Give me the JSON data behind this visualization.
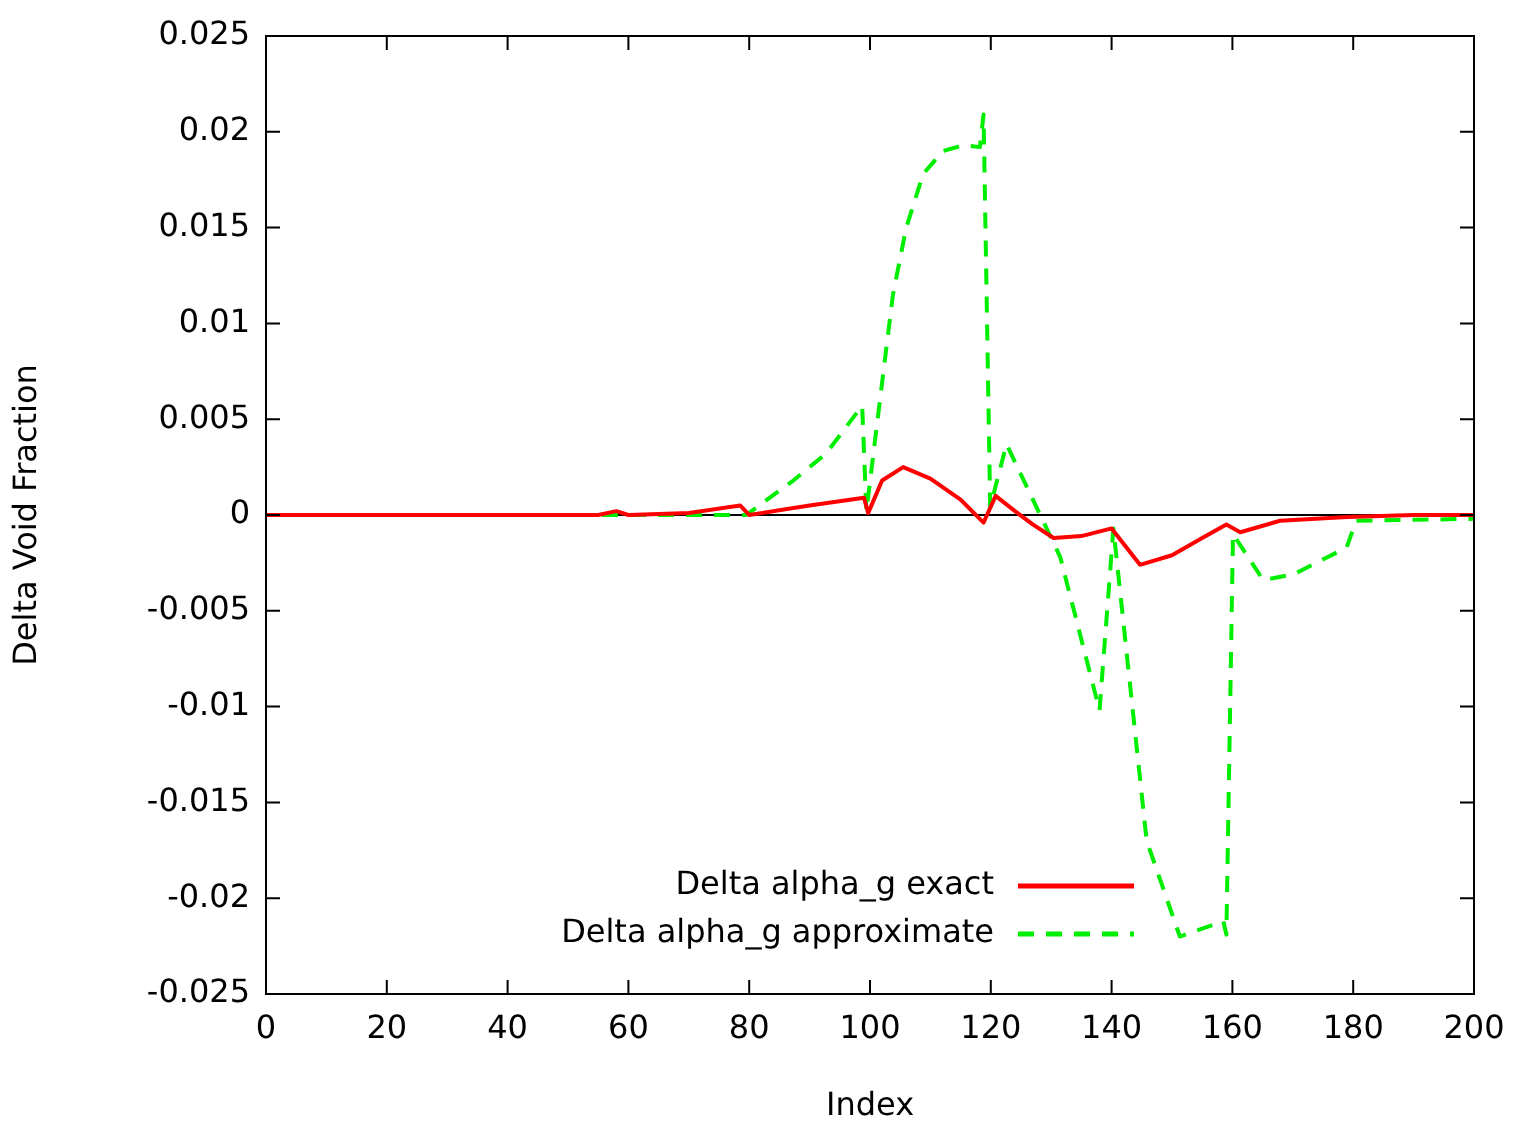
{
  "chart_data": {
    "type": "line",
    "xlabel": "Index",
    "ylabel": "Delta Void Fraction",
    "xlim": [
      0,
      200
    ],
    "xticks": [
      0,
      20,
      40,
      60,
      80,
      100,
      120,
      140,
      160,
      180,
      200
    ],
    "ylim": [
      -0.025,
      0.025
    ],
    "yticks": [
      -0.025,
      -0.02,
      -0.015,
      -0.01,
      -0.005,
      0,
      0.005,
      0.01,
      0.015,
      0.02,
      0.025
    ],
    "grid": false,
    "legend": "bottom",
    "marker": "none",
    "ref_lines": [
      {
        "axis": "y",
        "value": 0,
        "color": "#000000"
      }
    ],
    "series": [
      {
        "name": "Delta alpha_g exact",
        "color": "#ff0000",
        "line_style": "solid",
        "x": [
          0,
          55,
          58,
          60,
          70,
          78.5,
          80,
          90,
          99,
          99.7,
          102,
          105.5,
          110,
          115,
          118.8,
          120.8,
          124,
          127,
          130.4,
          135,
          140,
          144.7,
          150,
          155,
          159,
          161.3,
          167.9,
          179,
          190,
          200
        ],
        "values": [
          0,
          0,
          0.0002,
          0,
          0.0001,
          0.0005,
          0,
          0.0005,
          0.0009,
          0.0001,
          0.0018,
          0.0025,
          0.0019,
          0.0008,
          -0.0004,
          0.001,
          0.0002,
          -0.0005,
          -0.0012,
          -0.0011,
          -0.0007,
          -0.0026,
          -0.0021,
          -0.0012,
          -0.0005,
          -0.0009,
          -0.0003,
          -0.0001,
          0,
          0
        ]
      },
      {
        "name": "Delta alpha_g approximate",
        "color": "#00ee00",
        "line_style": "dashed",
        "x": [
          0,
          58,
          70,
          79.5,
          87.3,
          92.7,
          98.7,
          99.4,
          102.7,
          103.8,
          106,
          108.8,
          112.1,
          115.5,
          118.2,
          118.8,
          119.9,
          122.6,
          131.5,
          138,
          140.3,
          145.8,
          151.3,
          158.5,
          159,
          160.1,
          165.1,
          170.1,
          178.9,
          180.5,
          200
        ],
        "values": [
          0,
          0,
          0,
          0,
          0.0018,
          0.0032,
          0.0057,
          0.0002,
          0.0087,
          0.0115,
          0.015,
          0.0178,
          0.019,
          0.0193,
          0.0192,
          0.0209,
          0.0004,
          0.0037,
          -0.0022,
          -0.0102,
          -0.0007,
          -0.017,
          -0.022,
          -0.0212,
          -0.0219,
          -0.001,
          -0.0034,
          -0.0031,
          -0.0017,
          -0.0003,
          -0.0002
        ]
      }
    ]
  }
}
